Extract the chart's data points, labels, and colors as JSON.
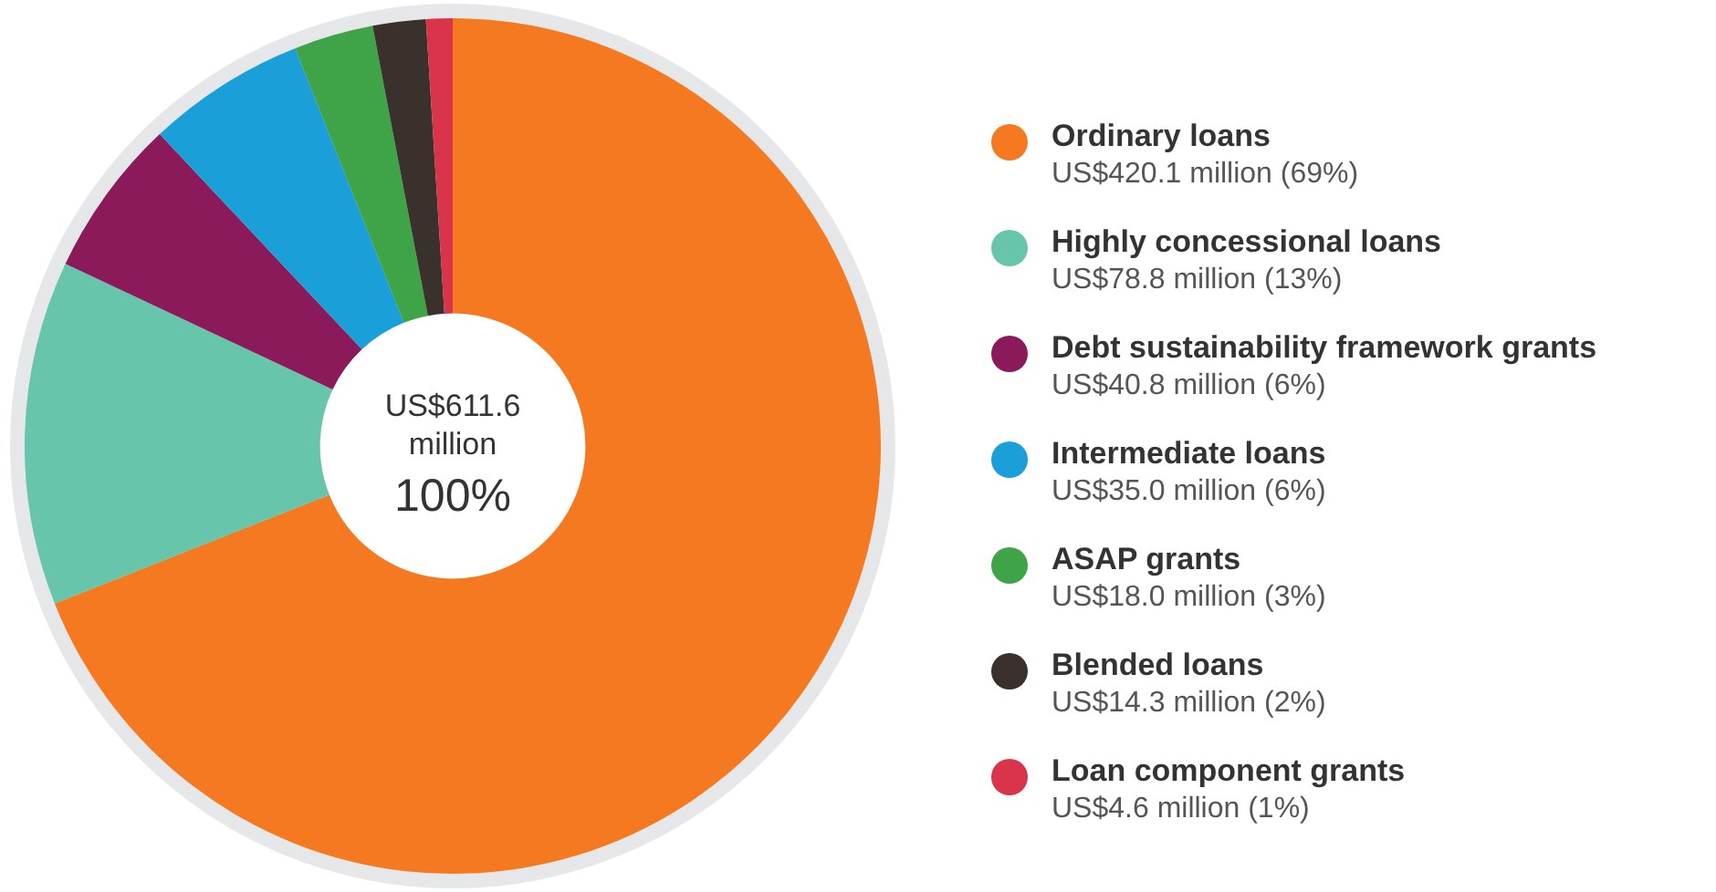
{
  "chart_data": {
    "type": "donut",
    "categories": [
      "Ordinary loans",
      "Highly concessional loans",
      "Debt sustainability framework grants",
      "Intermediate loans",
      "ASAP grants",
      "Blended loans",
      "Loan component grants"
    ],
    "values": [
      69,
      13,
      6,
      6,
      3,
      2,
      1
    ],
    "colors": [
      "#f47920",
      "#66c5ab",
      "#8b1a5a",
      "#1a9fd8",
      "#3fa447",
      "#3a312c",
      "#d9344a"
    ],
    "value_labels": [
      "US$420.1 million (69%)",
      "US$78.8 million (13%)",
      "US$40.8 million (6%)",
      "US$35.0 million (6%)",
      "US$18.0 million (3%)",
      "US$14.3 million (2%)",
      "US$4.6 million (1%)"
    ],
    "annotations": [
      "US$611.6 million",
      "100%"
    ],
    "legend": "right"
  }
}
